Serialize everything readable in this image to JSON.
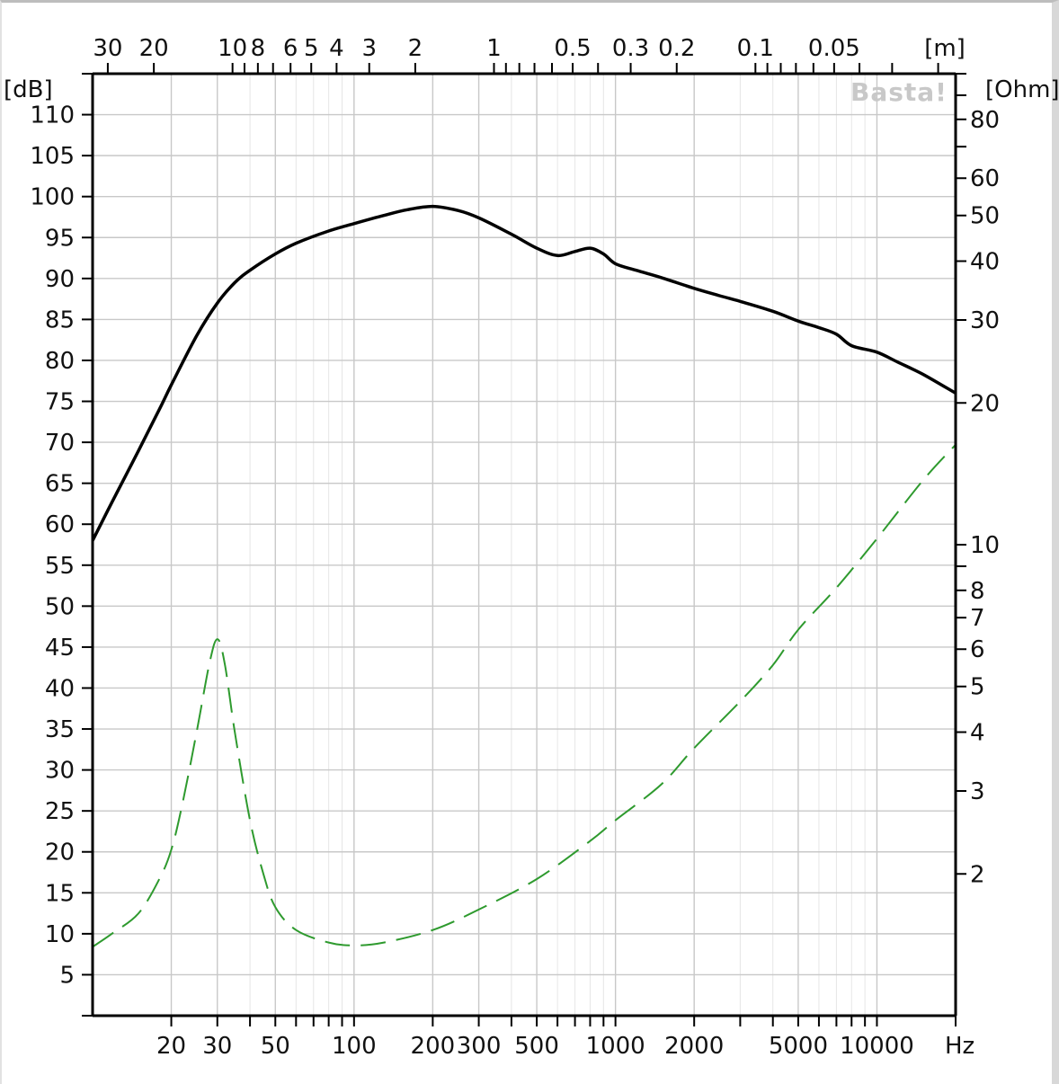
{
  "chart_data": {
    "type": "line",
    "watermark": "Basta!",
    "x_axis": {
      "scale": "log",
      "unit_label": "Hz",
      "range": [
        10,
        20000
      ],
      "tick_labels": [
        {
          "label": "20",
          "value": 20
        },
        {
          "label": "30",
          "value": 30
        },
        {
          "label": "50",
          "value": 50
        },
        {
          "label": "100",
          "value": 100
        },
        {
          "label": "200",
          "value": 200
        },
        {
          "label": "300",
          "value": 300
        },
        {
          "label": "500",
          "value": 500
        },
        {
          "label": "1000",
          "value": 1000
        },
        {
          "label": "2000",
          "value": 2000
        },
        {
          "label": "5000",
          "value": 5000
        },
        {
          "label": "10000",
          "value": 10000
        }
      ],
      "minor_ticks": [
        40,
        60,
        70,
        80,
        90,
        400,
        600,
        700,
        800,
        900,
        3000,
        4000,
        6000,
        7000,
        8000,
        9000,
        20000
      ]
    },
    "top_axis": {
      "scale": "wavelength",
      "unit_label": "[m]",
      "tick_labels": [
        {
          "label": "30",
          "value": 30
        },
        {
          "label": "20",
          "value": 20
        },
        {
          "label": "10",
          "value": 10
        },
        {
          "label": "8",
          "value": 8
        },
        {
          "label": "6",
          "value": 6
        },
        {
          "label": "5",
          "value": 5
        },
        {
          "label": "4",
          "value": 4
        },
        {
          "label": "3",
          "value": 3
        },
        {
          "label": "2",
          "value": 2
        },
        {
          "label": "1",
          "value": 1
        },
        {
          "label": "0.5",
          "value": 0.5
        },
        {
          "label": "0.3",
          "value": 0.3
        },
        {
          "label": "0.2",
          "value": 0.2
        },
        {
          "label": "0.1",
          "value": 0.1
        },
        {
          "label": "0.05",
          "value": 0.05
        }
      ],
      "minor_ticks": [
        9,
        7,
        0.9,
        0.8,
        0.7,
        0.6,
        0.4,
        0.09,
        0.08,
        0.07,
        0.06,
        0.04,
        0.03,
        0.02
      ]
    },
    "y_left": {
      "unit_label": "[dB]",
      "range": [
        0,
        115
      ],
      "tick_labels": [
        "5",
        "10",
        "15",
        "20",
        "25",
        "30",
        "35",
        "40",
        "45",
        "50",
        "55",
        "60",
        "65",
        "70",
        "75",
        "80",
        "85",
        "90",
        "95",
        "100",
        "105",
        "110"
      ],
      "tick_values": [
        5,
        10,
        15,
        20,
        25,
        30,
        35,
        40,
        45,
        50,
        55,
        60,
        65,
        70,
        75,
        80,
        85,
        90,
        95,
        100,
        105,
        110
      ]
    },
    "y_right": {
      "unit_label": "[Ohm]",
      "scale": "log",
      "range": [
        1,
        100
      ],
      "tick_labels": [
        {
          "label": "80",
          "value": 80
        },
        {
          "label": "60",
          "value": 60
        },
        {
          "label": "50",
          "value": 50
        },
        {
          "label": "40",
          "value": 40
        },
        {
          "label": "30",
          "value": 30
        },
        {
          "label": "20",
          "value": 20
        },
        {
          "label": "10",
          "value": 10
        },
        {
          "label": "8",
          "value": 8
        },
        {
          "label": "7",
          "value": 7
        },
        {
          "label": "6",
          "value": 6
        },
        {
          "label": "5",
          "value": 5
        },
        {
          "label": "4",
          "value": 4
        },
        {
          "label": "3",
          "value": 3
        },
        {
          "label": "2",
          "value": 2
        }
      ],
      "minor_ticks": [
        100,
        90,
        70,
        9
      ]
    },
    "grid": true,
    "series": [
      {
        "axis": "left",
        "color": "#000000",
        "style": "solid",
        "x": [
          10,
          12,
          15,
          18,
          20,
          25,
          30,
          35,
          40,
          50,
          60,
          80,
          100,
          130,
          160,
          200,
          250,
          300,
          400,
          500,
          600,
          700,
          800,
          900,
          1000,
          1200,
          1500,
          2000,
          2500,
          3000,
          4000,
          5000,
          6000,
          7000,
          8000,
          10000,
          12000,
          15000,
          20000
        ],
        "y": [
          58,
          63,
          69,
          74,
          77,
          83,
          87,
          89.5,
          91,
          93,
          94.3,
          95.8,
          96.7,
          97.7,
          98.4,
          98.8,
          98.3,
          97.4,
          95.4,
          93.7,
          92.8,
          93.3,
          93.7,
          93,
          91.8,
          91,
          90.1,
          88.8,
          87.9,
          87.2,
          86,
          84.8,
          84,
          83.2,
          81.8,
          81,
          79.8,
          78.3,
          76
        ]
      },
      {
        "axis": "right",
        "color": "#2e9a2e",
        "style": "dashed",
        "x": [
          10,
          12,
          15,
          18,
          20,
          22,
          25,
          28,
          30,
          32,
          35,
          40,
          45,
          50,
          60,
          80,
          100,
          130,
          200,
          300,
          500,
          800,
          1000,
          1500,
          2000,
          3000,
          4000,
          5000,
          7000,
          10000,
          15000,
          20000
        ],
        "y": [
          1.4,
          1.5,
          1.65,
          1.95,
          2.25,
          2.8,
          4,
          5.6,
          6.3,
          5.6,
          4,
          2.6,
          2,
          1.7,
          1.52,
          1.43,
          1.41,
          1.43,
          1.52,
          1.68,
          1.95,
          2.35,
          2.6,
          3.1,
          3.7,
          4.65,
          5.55,
          6.6,
          8.1,
          10.3,
          13.7,
          16.3
        ]
      }
    ]
  }
}
